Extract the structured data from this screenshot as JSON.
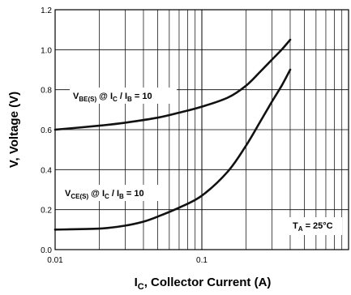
{
  "chart_data": {
    "type": "line",
    "xlabel": {
      "main": "I",
      "sub": "C",
      "rest": ", Collector Current (A)"
    },
    "ylabel": "V, Voltage (V)",
    "x_scale": "log",
    "xlim": [
      0.01,
      1
    ],
    "ylim": [
      0.0,
      1.2
    ],
    "y_ticks": [
      0.0,
      0.2,
      0.4,
      0.6,
      0.8,
      1.0,
      1.2
    ],
    "y_tick_labels": [
      "0.0",
      "0.2",
      "0.4",
      "0.6",
      "0.8",
      "1.0",
      "1.2"
    ],
    "x_ticks": [
      0.01,
      0.1
    ],
    "x_tick_labels": [
      "0.01",
      "0.1"
    ],
    "grid": true,
    "series": [
      {
        "name": "VBE(S) @ IC / IB = 10",
        "x": [
          0.01,
          0.02,
          0.03,
          0.05,
          0.07,
          0.1,
          0.15,
          0.2,
          0.25,
          0.3,
          0.35,
          0.4
        ],
        "y": [
          0.6,
          0.62,
          0.635,
          0.66,
          0.685,
          0.715,
          0.76,
          0.82,
          0.89,
          0.95,
          1.0,
          1.05
        ]
      },
      {
        "name": "VCE(S) @ IC / IB = 10",
        "x": [
          0.01,
          0.02,
          0.03,
          0.04,
          0.05,
          0.07,
          0.1,
          0.15,
          0.2,
          0.25,
          0.3,
          0.35,
          0.4
        ],
        "y": [
          0.1,
          0.105,
          0.12,
          0.14,
          0.165,
          0.21,
          0.27,
          0.39,
          0.52,
          0.64,
          0.74,
          0.82,
          0.9
        ]
      }
    ],
    "annotations": {
      "vbe": {
        "v": "V",
        "v_sub": "BE(S)",
        "at": " @ I",
        "at_sub": "C",
        "slash": " / I",
        "slash_sub": "B",
        "tail": " = 10"
      },
      "vce": {
        "v": "V",
        "v_sub": "CE(S)",
        "at": " @ I",
        "at_sub": "C",
        "slash": " / I",
        "slash_sub": "B",
        "tail": " = 10"
      },
      "temp": {
        "t": "T",
        "t_sub": "A",
        "tail": " = 25°C"
      }
    }
  }
}
